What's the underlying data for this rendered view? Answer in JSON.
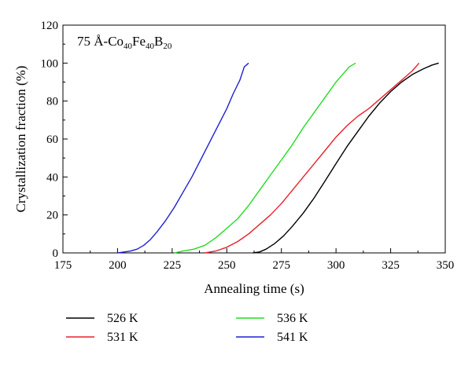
{
  "chart_data": {
    "type": "line",
    "annotation": {
      "prefix": "75 Å-Co",
      "sub1": "40",
      "mid": "Fe",
      "sub2": "40",
      "tail": "B",
      "sub3": "20"
    },
    "xlabel": "Annealing time (s)",
    "ylabel": "Crystallization fraction (%)",
    "xlim": [
      175,
      350
    ],
    "ylim": [
      0,
      120
    ],
    "xticks": [
      175,
      200,
      225,
      250,
      275,
      300,
      325,
      350
    ],
    "yticks": [
      0,
      20,
      40,
      60,
      80,
      100,
      120
    ],
    "grid": false,
    "legend_position": "bottom",
    "series": [
      {
        "name": "526 K",
        "color": "#000000",
        "x": [
          262,
          265,
          268,
          272,
          276,
          280,
          285,
          290,
          295,
          300,
          305,
          310,
          315,
          320,
          325,
          330,
          335,
          340,
          344,
          347
        ],
        "y": [
          0,
          0.5,
          2,
          5,
          9,
          14,
          21,
          29,
          38,
          47,
          56,
          64,
          72,
          79,
          85,
          90,
          94,
          97,
          99,
          100
        ]
      },
      {
        "name": "531 K",
        "color": "#e8202a",
        "x": [
          240,
          245,
          250,
          255,
          260,
          265,
          270,
          275,
          280,
          285,
          290,
          295,
          300,
          305,
          310,
          315,
          320,
          325,
          330,
          335,
          338
        ],
        "y": [
          0,
          1,
          3,
          6,
          10,
          15,
          20,
          26,
          33,
          40,
          47,
          54,
          61,
          67,
          72,
          76,
          81,
          86,
          91,
          96,
          100
        ]
      },
      {
        "name": "536 K",
        "color": "#22dd22",
        "x": [
          226,
          230,
          235,
          240,
          245,
          250,
          255,
          260,
          265,
          270,
          275,
          280,
          285,
          290,
          295,
          300,
          303,
          306,
          309
        ],
        "y": [
          0,
          1,
          2,
          4,
          8,
          13,
          18,
          25,
          33,
          41,
          49,
          57,
          66,
          74,
          82,
          90,
          94,
          98,
          100
        ]
      },
      {
        "name": "541 K",
        "color": "#2020d0",
        "x": [
          200,
          203,
          206,
          209,
          212,
          215,
          218,
          222,
          226,
          230,
          234,
          238,
          242,
          246,
          250,
          253,
          256,
          258,
          260
        ],
        "y": [
          0,
          0.5,
          1,
          2,
          4,
          7,
          11,
          17,
          24,
          32,
          40,
          49,
          58,
          67,
          76,
          84,
          91,
          98,
          100
        ]
      }
    ]
  }
}
